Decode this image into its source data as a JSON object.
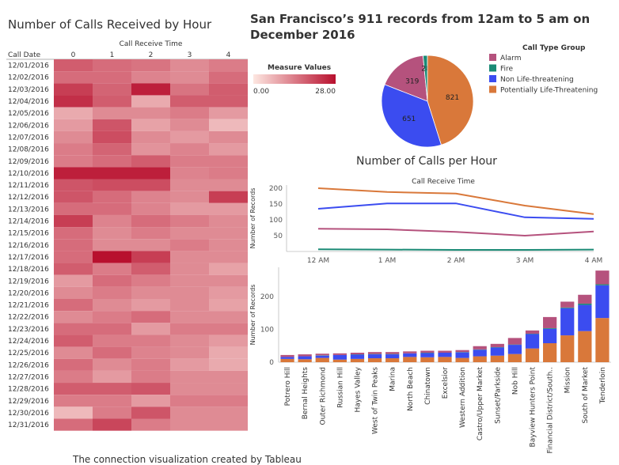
{
  "heatmap": {
    "title": "Number of Calls Received by Hour",
    "column_title": "Call Receive Time",
    "row_title": "Call Date",
    "columns": [
      "0",
      "1",
      "2",
      "3",
      "4"
    ],
    "rows": [
      "12/01/2016",
      "12/02/2016",
      "12/03/2016",
      "12/04/2016",
      "12/05/2016",
      "12/06/2016",
      "12/07/2016",
      "12/08/2016",
      "12/09/2016",
      "12/10/2016",
      "12/11/2016",
      "12/12/2016",
      "12/13/2016",
      "12/14/2016",
      "12/15/2016",
      "12/16/2016",
      "12/17/2016",
      "12/18/2016",
      "12/19/2016",
      "12/20/2016",
      "12/21/2016",
      "12/22/2016",
      "12/23/2016",
      "12/24/2016",
      "12/25/2016",
      "12/26/2016",
      "12/27/2016",
      "12/28/2016",
      "12/29/2016",
      "12/30/2016",
      "12/31/2016"
    ]
  },
  "main_title": "San Francisco’s 911 records from 12am  to 5 am on December 2016",
  "legend_measure": {
    "title": "Measure Values",
    "min_label": "0.00",
    "max_label": "28.00"
  },
  "legend_groups": {
    "title": "Call Type Group",
    "items": [
      {
        "label": "Alarm",
        "color": "#b5527d"
      },
      {
        "label": "Fire",
        "color": "#1a8a75"
      },
      {
        "label": "Non Life-threatening",
        "color": "#3b4cf0"
      },
      {
        "label": "Potentially Life-Threatening",
        "color": "#d9783a"
      }
    ]
  },
  "line_title": "Number of Calls per Hour",
  "colors": {
    "alarm": "#b5527d",
    "fire": "#1a8a75",
    "nonlife": "#3b4cf0",
    "potential": "#d9783a",
    "heat_low": "#fde7e1",
    "heat_high": "#b8102e"
  },
  "caption": {
    "text": "The connection visualization created by Tableau",
    "link": "Tableau"
  },
  "chart_data": [
    {
      "type": "heatmap",
      "title": "Number of Calls Received by Hour",
      "xlabel": "Call Receive Time",
      "ylabel": "Call Date",
      "x": [
        "0",
        "1",
        "2",
        "3",
        "4"
      ],
      "y": [
        "12/01/2016",
        "12/02/2016",
        "12/03/2016",
        "12/04/2016",
        "12/05/2016",
        "12/06/2016",
        "12/07/2016",
        "12/08/2016",
        "12/09/2016",
        "12/10/2016",
        "12/11/2016",
        "12/12/2016",
        "12/13/2016",
        "12/14/2016",
        "12/15/2016",
        "12/16/2016",
        "12/17/2016",
        "12/18/2016",
        "12/19/2016",
        "12/20/2016",
        "12/21/2016",
        "12/22/2016",
        "12/23/2016",
        "12/24/2016",
        "12/25/2016",
        "12/26/2016",
        "12/27/2016",
        "12/28/2016",
        "12/29/2016",
        "12/30/2016",
        "12/31/2016"
      ],
      "values": [
        [
          18,
          16,
          15,
          12,
          14
        ],
        [
          16,
          16,
          13,
          12,
          16
        ],
        [
          22,
          17,
          26,
          15,
          18
        ],
        [
          24,
          18,
          8,
          18,
          18
        ],
        [
          8,
          12,
          12,
          14,
          10
        ],
        [
          10,
          19,
          9,
          12,
          6
        ],
        [
          12,
          20,
          12,
          10,
          12
        ],
        [
          14,
          17,
          11,
          13,
          10
        ],
        [
          14,
          16,
          18,
          14,
          14
        ],
        [
          26,
          26,
          26,
          13,
          14
        ],
        [
          19,
          20,
          20,
          12,
          12
        ],
        [
          19,
          16,
          13,
          12,
          22
        ],
        [
          16,
          16,
          13,
          10,
          10
        ],
        [
          22,
          13,
          16,
          14,
          12
        ],
        [
          16,
          12,
          14,
          12,
          12
        ],
        [
          16,
          12,
          12,
          14,
          12
        ],
        [
          16,
          28,
          22,
          12,
          12
        ],
        [
          18,
          14,
          18,
          12,
          9
        ],
        [
          10,
          16,
          14,
          12,
          12
        ],
        [
          12,
          14,
          12,
          12,
          10
        ],
        [
          16,
          12,
          10,
          12,
          9
        ],
        [
          12,
          14,
          16,
          12,
          12
        ],
        [
          16,
          16,
          10,
          14,
          14
        ],
        [
          18,
          14,
          14,
          12,
          10
        ],
        [
          12,
          16,
          13,
          12,
          8
        ],
        [
          16,
          12,
          14,
          10,
          8
        ],
        [
          14,
          10,
          14,
          12,
          12
        ],
        [
          18,
          18,
          19,
          12,
          12
        ],
        [
          14,
          14,
          10,
          14,
          14
        ],
        [
          6,
          14,
          19,
          12,
          12
        ],
        [
          16,
          21,
          14,
          12,
          12
        ]
      ],
      "range": [
        0,
        28
      ]
    },
    {
      "type": "pie",
      "labels": [
        "Alarm",
        "Fire",
        "Non Life-threatening",
        "Potentially Life-Threatening"
      ],
      "values": [
        319,
        28,
        651,
        821
      ]
    },
    {
      "type": "line",
      "title": "Number of Calls per Hour",
      "xlabel": "Call Receive Time",
      "ylabel": "Number of Records",
      "categories": [
        "12 AM",
        "1 AM",
        "2 AM",
        "3 AM",
        "4 AM"
      ],
      "ylim": [
        0,
        210
      ],
      "yticks": [
        50,
        100,
        150,
        200
      ],
      "series": [
        {
          "name": "Alarm",
          "values": [
            72,
            70,
            62,
            50,
            63
          ]
        },
        {
          "name": "Fire",
          "values": [
            7,
            6,
            5,
            5,
            6
          ]
        },
        {
          "name": "Non Life-threatening",
          "values": [
            135,
            152,
            152,
            108,
            103
          ]
        },
        {
          "name": "Potentially Life-Threatening",
          "values": [
            200,
            188,
            183,
            145,
            118
          ]
        }
      ]
    },
    {
      "type": "bar",
      "stacked": true,
      "ylabel": "Number of Records",
      "ylim": [
        0,
        290
      ],
      "yticks": [
        0,
        100,
        200
      ],
      "categories": [
        "Potrero Hill",
        "Bernal Heights",
        "Outer Richmond",
        "Russian Hill",
        "Hayes Valley",
        "West of Twin Peaks",
        "Marina",
        "North Beach",
        "Chinatown",
        "Excelsior",
        "Western Addition",
        "Castro/Upper Market",
        "Sunset/Parkside",
        "Nob Hill",
        "Bayview Hunters Point",
        "Financial District/South..",
        "Mission",
        "South of Market",
        "Tenderloin"
      ],
      "series": [
        {
          "name": "Potentially Life-Threatening",
          "values": [
            10,
            9,
            13,
            8,
            10,
            12,
            12,
            16,
            15,
            16,
            13,
            18,
            20,
            25,
            42,
            58,
            82,
            95,
            135
          ]
        },
        {
          "name": "Non Life-threatening",
          "values": [
            6,
            9,
            7,
            14,
            13,
            12,
            12,
            11,
            13,
            13,
            17,
            20,
            25,
            28,
            44,
            44,
            83,
            80,
            100
          ]
        },
        {
          "name": "Fire",
          "values": [
            0,
            0,
            1,
            0,
            1,
            1,
            1,
            0,
            1,
            0,
            1,
            1,
            1,
            1,
            1,
            2,
            2,
            4,
            3
          ]
        },
        {
          "name": "Alarm",
          "values": [
            6,
            6,
            5,
            5,
            5,
            6,
            6,
            6,
            6,
            6,
            6,
            10,
            10,
            20,
            10,
            34,
            18,
            27,
            42
          ]
        }
      ]
    }
  ]
}
